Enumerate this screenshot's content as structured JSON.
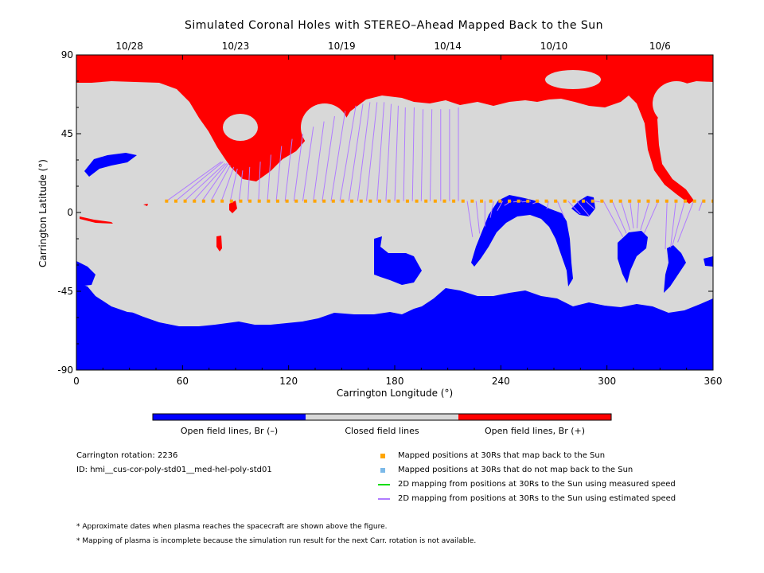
{
  "chart_data": {
    "type": "map",
    "title": "Simulated Coronal Holes with STEREO–Ahead Mapped Back to the Sun",
    "xlabel": "Carrington Longitude (°)",
    "ylabel": "Carrington Latitude (°)",
    "xlim": [
      0,
      360
    ],
    "ylim": [
      -90,
      90
    ],
    "x_ticks": [
      0,
      60,
      120,
      180,
      240,
      300,
      360
    ],
    "y_ticks": [
      90,
      45,
      0,
      -45,
      -90
    ],
    "top_axis": {
      "labels": [
        "10/28",
        "10/23",
        "10/19",
        "10/14",
        "10/10",
        "10/6"
      ],
      "longitudes": [
        30,
        90,
        150,
        210,
        270,
        330
      ]
    },
    "colors": {
      "open_negative": "#0000ff",
      "closed": "#d8d8d8",
      "open_positive": "#ff0000",
      "mapped_point": "#ffa500",
      "unmapped_point": "#7cb9e8",
      "measured_line": "#00dd00",
      "estimated_line": "#b07cff"
    },
    "colorbar": {
      "labels": [
        "Open field lines, Br (–)",
        "Closed field lines",
        "Open field lines, Br (+)"
      ]
    },
    "regions": {
      "north_polar_positive": {
        "polarity": "+",
        "lat_boundary_approx": [
          76,
          60
        ]
      },
      "south_polar_negative": {
        "polarity": "-",
        "lat_boundary_approx": [
          -45,
          -65
        ]
      }
    },
    "mapped_positions": {
      "latitude": 6.5,
      "lon_start": 51,
      "lon_end": 360,
      "count": 60
    },
    "mapping_lines": [
      {
        "from_lon": 51,
        "to_lon": 82,
        "to_lat": 29
      },
      {
        "from_lon": 56,
        "to_lon": 83,
        "to_lat": 29
      },
      {
        "from_lon": 61,
        "to_lon": 84,
        "to_lat": 28
      },
      {
        "from_lon": 66,
        "to_lon": 85,
        "to_lat": 28
      },
      {
        "from_lon": 71,
        "to_lon": 86,
        "to_lat": 28
      },
      {
        "from_lon": 76,
        "to_lon": 87,
        "to_lat": 27
      },
      {
        "from_lon": 82,
        "to_lon": 89,
        "to_lat": 26
      },
      {
        "from_lon": 87,
        "to_lon": 91,
        "to_lat": 25
      },
      {
        "from_lon": 92,
        "to_lon": 94,
        "to_lat": 24
      },
      {
        "from_lon": 97,
        "to_lon": 98,
        "to_lat": 26
      },
      {
        "from_lon": 103,
        "to_lon": 104,
        "to_lat": 29
      },
      {
        "from_lon": 108,
        "to_lon": 110,
        "to_lat": 33
      },
      {
        "from_lon": 113,
        "to_lon": 116,
        "to_lat": 38
      },
      {
        "from_lon": 118,
        "to_lon": 122,
        "to_lat": 42
      },
      {
        "from_lon": 123,
        "to_lon": 128,
        "to_lat": 45
      },
      {
        "from_lon": 128,
        "to_lon": 134,
        "to_lat": 49
      },
      {
        "from_lon": 134,
        "to_lon": 140,
        "to_lat": 52
      },
      {
        "from_lon": 139,
        "to_lon": 146,
        "to_lat": 55
      },
      {
        "from_lon": 144,
        "to_lon": 152,
        "to_lat": 58
      },
      {
        "from_lon": 149,
        "to_lon": 158,
        "to_lat": 61
      },
      {
        "from_lon": 154,
        "to_lon": 162,
        "to_lat": 62
      },
      {
        "from_lon": 159,
        "to_lon": 166,
        "to_lat": 63
      },
      {
        "from_lon": 164,
        "to_lon": 170,
        "to_lat": 63
      },
      {
        "from_lon": 170,
        "to_lon": 174,
        "to_lat": 63
      },
      {
        "from_lon": 175,
        "to_lon": 178,
        "to_lat": 62
      },
      {
        "from_lon": 180,
        "to_lon": 182,
        "to_lat": 61
      },
      {
        "from_lon": 185,
        "to_lon": 186,
        "to_lat": 60
      },
      {
        "from_lon": 190,
        "to_lon": 191,
        "to_lat": 60
      },
      {
        "from_lon": 195,
        "to_lon": 196,
        "to_lat": 59
      },
      {
        "from_lon": 200,
        "to_lon": 201,
        "to_lat": 59
      },
      {
        "from_lon": 206,
        "to_lon": 206,
        "to_lat": 59
      },
      {
        "from_lon": 211,
        "to_lon": 211,
        "to_lat": 59
      },
      {
        "from_lon": 216,
        "to_lon": 216,
        "to_lat": 60
      },
      {
        "from_lon": 221,
        "to_lon": 224,
        "to_lat": -14
      },
      {
        "from_lon": 226,
        "to_lon": 228,
        "to_lat": -12
      },
      {
        "from_lon": 231,
        "to_lon": 231,
        "to_lat": -8
      },
      {
        "from_lon": 236,
        "to_lon": 234,
        "to_lat": -3
      },
      {
        "from_lon": 241,
        "to_lon": 238,
        "to_lat": 1
      },
      {
        "from_lon": 246,
        "to_lon": 242,
        "to_lat": 4
      },
      {
        "from_lon": 252,
        "to_lon": 247,
        "to_lat": 6
      },
      {
        "from_lon": 257,
        "to_lon": 252,
        "to_lat": 6
      },
      {
        "from_lon": 262,
        "to_lon": 258,
        "to_lat": 5
      },
      {
        "from_lon": 267,
        "to_lon": 266,
        "to_lat": 2
      },
      {
        "from_lon": 272,
        "to_lon": 276,
        "to_lat": -3
      },
      {
        "from_lon": 278,
        "to_lon": 285,
        "to_lat": -1
      },
      {
        "from_lon": 283,
        "to_lon": 290,
        "to_lat": -2
      },
      {
        "from_lon": 288,
        "to_lon": 293,
        "to_lat": 2
      },
      {
        "from_lon": 293,
        "to_lon": 296,
        "to_lat": 6
      },
      {
        "from_lon": 298,
        "to_lon": 309,
        "to_lat": -14
      },
      {
        "from_lon": 303,
        "to_lon": 311,
        "to_lat": -12
      },
      {
        "from_lon": 308,
        "to_lon": 313,
        "to_lat": -10
      },
      {
        "from_lon": 313,
        "to_lon": 315,
        "to_lat": -9
      },
      {
        "from_lon": 318,
        "to_lon": 317,
        "to_lat": -9
      },
      {
        "from_lon": 324,
        "to_lon": 319,
        "to_lat": -10
      },
      {
        "from_lon": 329,
        "to_lon": 321,
        "to_lat": -12
      },
      {
        "from_lon": 334,
        "to_lon": 333,
        "to_lat": -21
      },
      {
        "from_lon": 339,
        "to_lon": 336,
        "to_lat": -20
      },
      {
        "from_lon": 344,
        "to_lon": 337,
        "to_lat": -19
      },
      {
        "from_lon": 349,
        "to_lon": 340,
        "to_lat": -17
      },
      {
        "from_lon": 354,
        "to_lon": 352,
        "to_lat": 1
      }
    ]
  },
  "info": {
    "rotation": "Carrington rotation: 2236",
    "id": "ID: hmi__cus-cor-poly-std01__med-hel-poly-std01"
  },
  "legend": {
    "mapped": "Mapped positions at 30Rs that map back to the Sun",
    "unmapped": "Mapped positions at 30Rs that do not map back to the Sun",
    "measured": "2D mapping from positions at 30Rs to the Sun using measured speed",
    "estimated": "2D mapping from positions at 30Rs to the Sun using estimated speed"
  },
  "footnotes": [
    "* Approximate dates when plasma reaches the spacecraft are shown above the figure.",
    "* Mapping of plasma is incomplete because the simulation run result for the next Carr. rotation is not available."
  ]
}
